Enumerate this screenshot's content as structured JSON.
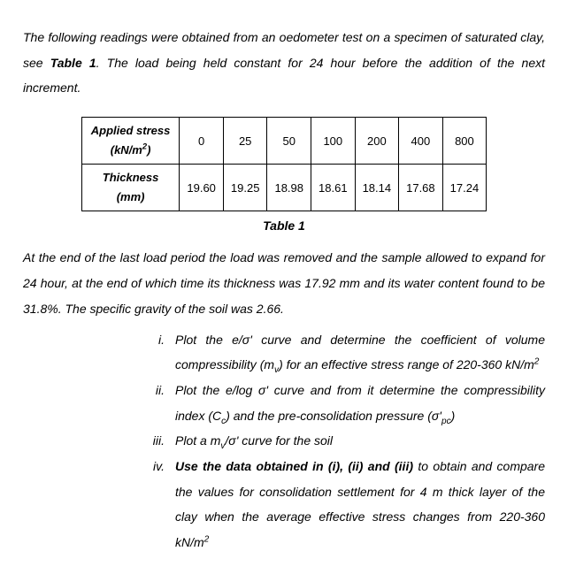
{
  "intro": {
    "part1": "The following readings were obtained from an oedometer test on a specimen of saturated clay, see ",
    "bold": "Table 1",
    "part2": ". The load being held constant for 24 hour before the addition of the next increment."
  },
  "table": {
    "row1_header": "Applied stress (kN/m²)",
    "row1": [
      "0",
      "25",
      "50",
      "100",
      "200",
      "400",
      "800"
    ],
    "row2_header": "Thickness (mm)",
    "row2": [
      "19.60",
      "19.25",
      "18.98",
      "18.61",
      "18.14",
      "17.68",
      "17.24"
    ],
    "caption": "Table 1"
  },
  "after": "At the end of the last load period the load was removed and the sample allowed to expand for 24 hour, at the end of which time its thickness was 17.92 mm and its water content found to be 31.8%. The specific gravity of the soil was 2.66.",
  "items": {
    "i": {
      "num": "i.",
      "text_a": "Plot the e/σ' curve and determine the coefficient of volume compressibility (m",
      "sub1": "v",
      "text_b": ") for an effective stress range of 220-360 kN/m",
      "sup1": "2"
    },
    "ii": {
      "num": "ii.",
      "text_a": "Plot the e/log σ' curve and from it determine the compressibility index (C",
      "sub1": "c",
      "text_b": ") and the pre-consolidation pressure (σ'",
      "sub2": "pc",
      "text_c": ")"
    },
    "iii": {
      "num": "iii.",
      "text_a": "Plot a m",
      "sub1": "v",
      "text_b": "/σ' curve for the soil"
    },
    "iv": {
      "num": "iv.",
      "bold": "Use the data obtained in (i), (ii) and (iii)",
      "text_a": " to obtain and compare the values for consolidation settlement for 4 m thick layer of the clay when the average effective stress changes from 220-360 kN/m",
      "sup1": "2"
    }
  }
}
